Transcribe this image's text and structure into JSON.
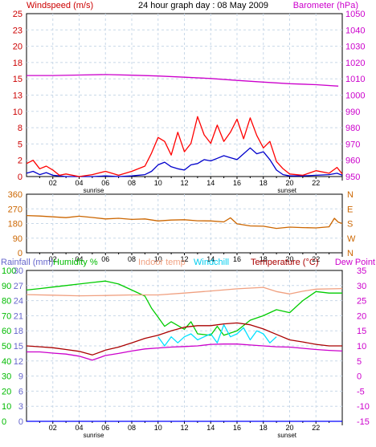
{
  "chart_data": [
    {
      "type": "line",
      "title": "24 hour graph day : 08 May 2009",
      "left_axis_label": "Windspeed (m/s)",
      "right_axis_label": "Barometer (hPa)",
      "x_ticks": [
        "02",
        "04",
        "06",
        "08",
        "10",
        "12",
        "14",
        "16",
        "18",
        "20",
        "22"
      ],
      "x_range": [
        0,
        24
      ],
      "sunrise_label": "sunrise",
      "sunset_label": "sunset",
      "sunrise_hour": 5.1,
      "sunset_hour": 19.8,
      "left_ticks": [
        "0",
        "2",
        "5",
        "8",
        "10",
        "13",
        "15",
        "18",
        "20",
        "23",
        "25"
      ],
      "left_range": [
        0,
        25
      ],
      "right_ticks": [
        "950",
        "960",
        "970",
        "980",
        "990",
        "1000",
        "1010",
        "1020",
        "1030",
        "1040",
        "1050"
      ],
      "right_range": [
        950,
        1050
      ],
      "grid": true,
      "series": [
        {
          "role": "windspeed",
          "color": "#0000cc",
          "axis": "left",
          "x": [
            0,
            0.5,
            1,
            1.5,
            2,
            2.5,
            3,
            4,
            5,
            6,
            7,
            8,
            9,
            9.5,
            10,
            10.5,
            11,
            11.5,
            12,
            12.5,
            13,
            13.5,
            14,
            14.5,
            15,
            15.5,
            16,
            16.5,
            17,
            17.5,
            18,
            18.5,
            19,
            19.5,
            20,
            21,
            22,
            23,
            23.6,
            24
          ],
          "y": [
            0.5,
            0.8,
            0.3,
            0.6,
            0.2,
            0.1,
            0,
            0,
            0,
            0.1,
            0,
            0.1,
            0.3,
            0.8,
            1.8,
            2.2,
            1.5,
            1.2,
            1.0,
            1.8,
            2.0,
            2.6,
            2.4,
            2.8,
            3.2,
            2.9,
            2.6,
            3.5,
            4.4,
            3.5,
            3.8,
            2.6,
            1.0,
            0.3,
            0.1,
            0.1,
            0.2,
            0.3,
            0.5,
            0.2
          ]
        },
        {
          "role": "gust",
          "color": "#ff0000",
          "axis": "left",
          "x": [
            0,
            0.5,
            1,
            1.5,
            2,
            2.5,
            3,
            4,
            5,
            6,
            7,
            8,
            9,
            9.5,
            10,
            10.5,
            11,
            11.5,
            12,
            12.5,
            13,
            13.5,
            14,
            14.5,
            15,
            15.5,
            16,
            16.5,
            17,
            17.5,
            18,
            18.5,
            19,
            19.5,
            20,
            21,
            22,
            23,
            23.6,
            24
          ],
          "y": [
            2.0,
            2.5,
            1.2,
            1.6,
            1.0,
            0.2,
            0.4,
            0,
            0.3,
            0.8,
            0.2,
            0.8,
            1.6,
            3.6,
            6.0,
            5.4,
            3.3,
            6.8,
            3.8,
            5.1,
            9.2,
            6.4,
            5.1,
            7.9,
            5.4,
            6.8,
            8.8,
            5.8,
            9.0,
            6.3,
            4.4,
            5.4,
            2.3,
            1.2,
            0.4,
            0.2,
            0.9,
            0.5,
            1.4,
            0.4
          ]
        },
        {
          "role": "barometer",
          "color": "#cc00cc",
          "axis": "right",
          "x": [
            0,
            2,
            4,
            6,
            8,
            10,
            12,
            14,
            16,
            18,
            20,
            22,
            23.7
          ],
          "y": [
            1012,
            1012,
            1012.3,
            1012.6,
            1012.2,
            1011.7,
            1011,
            1010.2,
            1009,
            1008,
            1007,
            1006.4,
            1005.5
          ]
        }
      ]
    },
    {
      "type": "line",
      "x_ticks": [
        "02",
        "04",
        "06",
        "08",
        "10",
        "12",
        "14",
        "16",
        "18",
        "20",
        "22"
      ],
      "x_range": [
        0,
        24
      ],
      "left_ticks": [
        "0",
        "90",
        "180",
        "270",
        "360"
      ],
      "left_range": [
        0,
        360
      ],
      "right_ticks": [
        "N",
        "W",
        "S",
        "E",
        "N"
      ],
      "grid": true,
      "series": [
        {
          "role": "wind-direction",
          "color": "#cc6600",
          "x": [
            0,
            1,
            2,
            3,
            4,
            5,
            6,
            7,
            8,
            9,
            10,
            11,
            12,
            13,
            14,
            15,
            15.5,
            16,
            17,
            18,
            19,
            20,
            21,
            22,
            23,
            23.4,
            23.7,
            24
          ],
          "y": [
            229,
            226,
            221,
            216,
            225,
            217,
            208,
            212,
            205,
            208,
            196,
            201,
            203,
            197,
            196,
            190,
            215,
            178,
            165,
            163,
            150,
            158,
            155,
            153,
            160,
            212,
            188,
            180
          ]
        }
      ]
    },
    {
      "type": "line",
      "labels": {
        "rainfall": "Rainfall (mm)",
        "humidity": "Humidity %",
        "indoor_temp": "Indoor temp",
        "windchill": "Windchill",
        "temperature": "Temperature (°C)",
        "dew_point": "Dew Point"
      },
      "x_ticks": [
        "02",
        "04",
        "06",
        "08",
        "10",
        "12",
        "14",
        "16",
        "18",
        "20",
        "22"
      ],
      "x_range": [
        0,
        24
      ],
      "sunrise_label": "sunrise",
      "sunset_label": "sunset",
      "sunrise_hour": 5.1,
      "sunset_hour": 19.8,
      "humidity_ticks": [
        "0",
        "10",
        "20",
        "30",
        "40",
        "50",
        "60",
        "70",
        "80",
        "90",
        "100"
      ],
      "humidity_range": [
        0,
        100
      ],
      "rainfall_ticks": [
        "0",
        "3",
        "6",
        "9",
        "12",
        "15",
        "18",
        "21",
        "24",
        "27",
        "30"
      ],
      "rainfall_range": [
        0,
        30
      ],
      "temp_ticks": [
        "-15",
        "-10",
        "-5",
        "0",
        "5",
        "10",
        "15",
        "20",
        "25",
        "30",
        "35"
      ],
      "temp_range": [
        -15,
        35
      ],
      "grid": true,
      "series": [
        {
          "role": "humidity",
          "color": "#00cc00",
          "axis": "humidity",
          "x": [
            0,
            1,
            2,
            3,
            4,
            5,
            6,
            7,
            8,
            9,
            9.5,
            10,
            10.5,
            11,
            12,
            12.5,
            13,
            14,
            14.5,
            15,
            16,
            17,
            18,
            18.5,
            19,
            20,
            21,
            22,
            23,
            24
          ],
          "y": [
            87,
            88,
            89,
            90,
            91,
            92,
            93,
            91,
            87,
            83,
            75,
            69,
            63,
            66,
            61,
            66,
            58,
            57,
            63,
            57,
            60,
            67,
            70,
            72,
            74,
            72,
            80,
            86,
            85,
            85
          ]
        },
        {
          "role": "indoor-temp",
          "color": "#f0a080",
          "axis": "temp",
          "x": [
            0,
            2,
            4,
            6,
            8,
            10,
            12,
            14,
            16,
            18,
            19,
            20,
            21,
            22,
            24
          ],
          "y": [
            27,
            26.8,
            26.6,
            26.7,
            26.9,
            26.9,
            27.5,
            28.2,
            28.9,
            29.4,
            28,
            27.2,
            28.1,
            28.8,
            29
          ]
        },
        {
          "role": "windchill",
          "color": "#00e0ff",
          "axis": "temp",
          "x": [
            10,
            10.5,
            11,
            11.5,
            12,
            12.5,
            13,
            13.5,
            14,
            14.5,
            15,
            15.5,
            16,
            16.5,
            17,
            17.5,
            18,
            18.5,
            19
          ],
          "y": [
            13,
            10,
            13,
            11,
            13,
            14,
            12,
            13,
            14,
            11,
            17,
            13,
            14,
            16,
            12,
            15,
            14,
            11,
            13
          ]
        },
        {
          "role": "temperature",
          "color": "#aa0000",
          "axis": "temp",
          "x": [
            0,
            1,
            2,
            3,
            4,
            5,
            6,
            7,
            8,
            9,
            10,
            11,
            12,
            13,
            14,
            15,
            16,
            17,
            18,
            19,
            20,
            21,
            22,
            23,
            24
          ],
          "y": [
            10,
            9.7,
            9.4,
            8.8,
            8.2,
            7,
            8.6,
            9.6,
            11,
            12.5,
            13.5,
            15,
            16.2,
            16.7,
            16.7,
            17.3,
            17.6,
            17,
            15.6,
            13.8,
            12,
            11.3,
            10.5,
            10,
            10
          ]
        },
        {
          "role": "dew-point",
          "color": "#cc00cc",
          "axis": "temp",
          "x": [
            0,
            1,
            2,
            3,
            4,
            5,
            6,
            7,
            8,
            9,
            10,
            11,
            12,
            13,
            14,
            15,
            16,
            17,
            18,
            19,
            20,
            21,
            22,
            23,
            24
          ],
          "y": [
            8,
            8,
            7.6,
            7.3,
            6.6,
            5.3,
            6.8,
            7.5,
            8.3,
            9,
            9.3,
            9.6,
            9.8,
            10,
            10.5,
            10.6,
            10.6,
            10.3,
            10,
            9.7,
            9.6,
            9.2,
            8.8,
            8.5,
            8.3
          ]
        },
        {
          "role": "rainfall",
          "color": "#0000ff",
          "axis": "rainfall",
          "x": [
            0,
            24
          ],
          "y": [
            0,
            0
          ]
        }
      ]
    }
  ]
}
